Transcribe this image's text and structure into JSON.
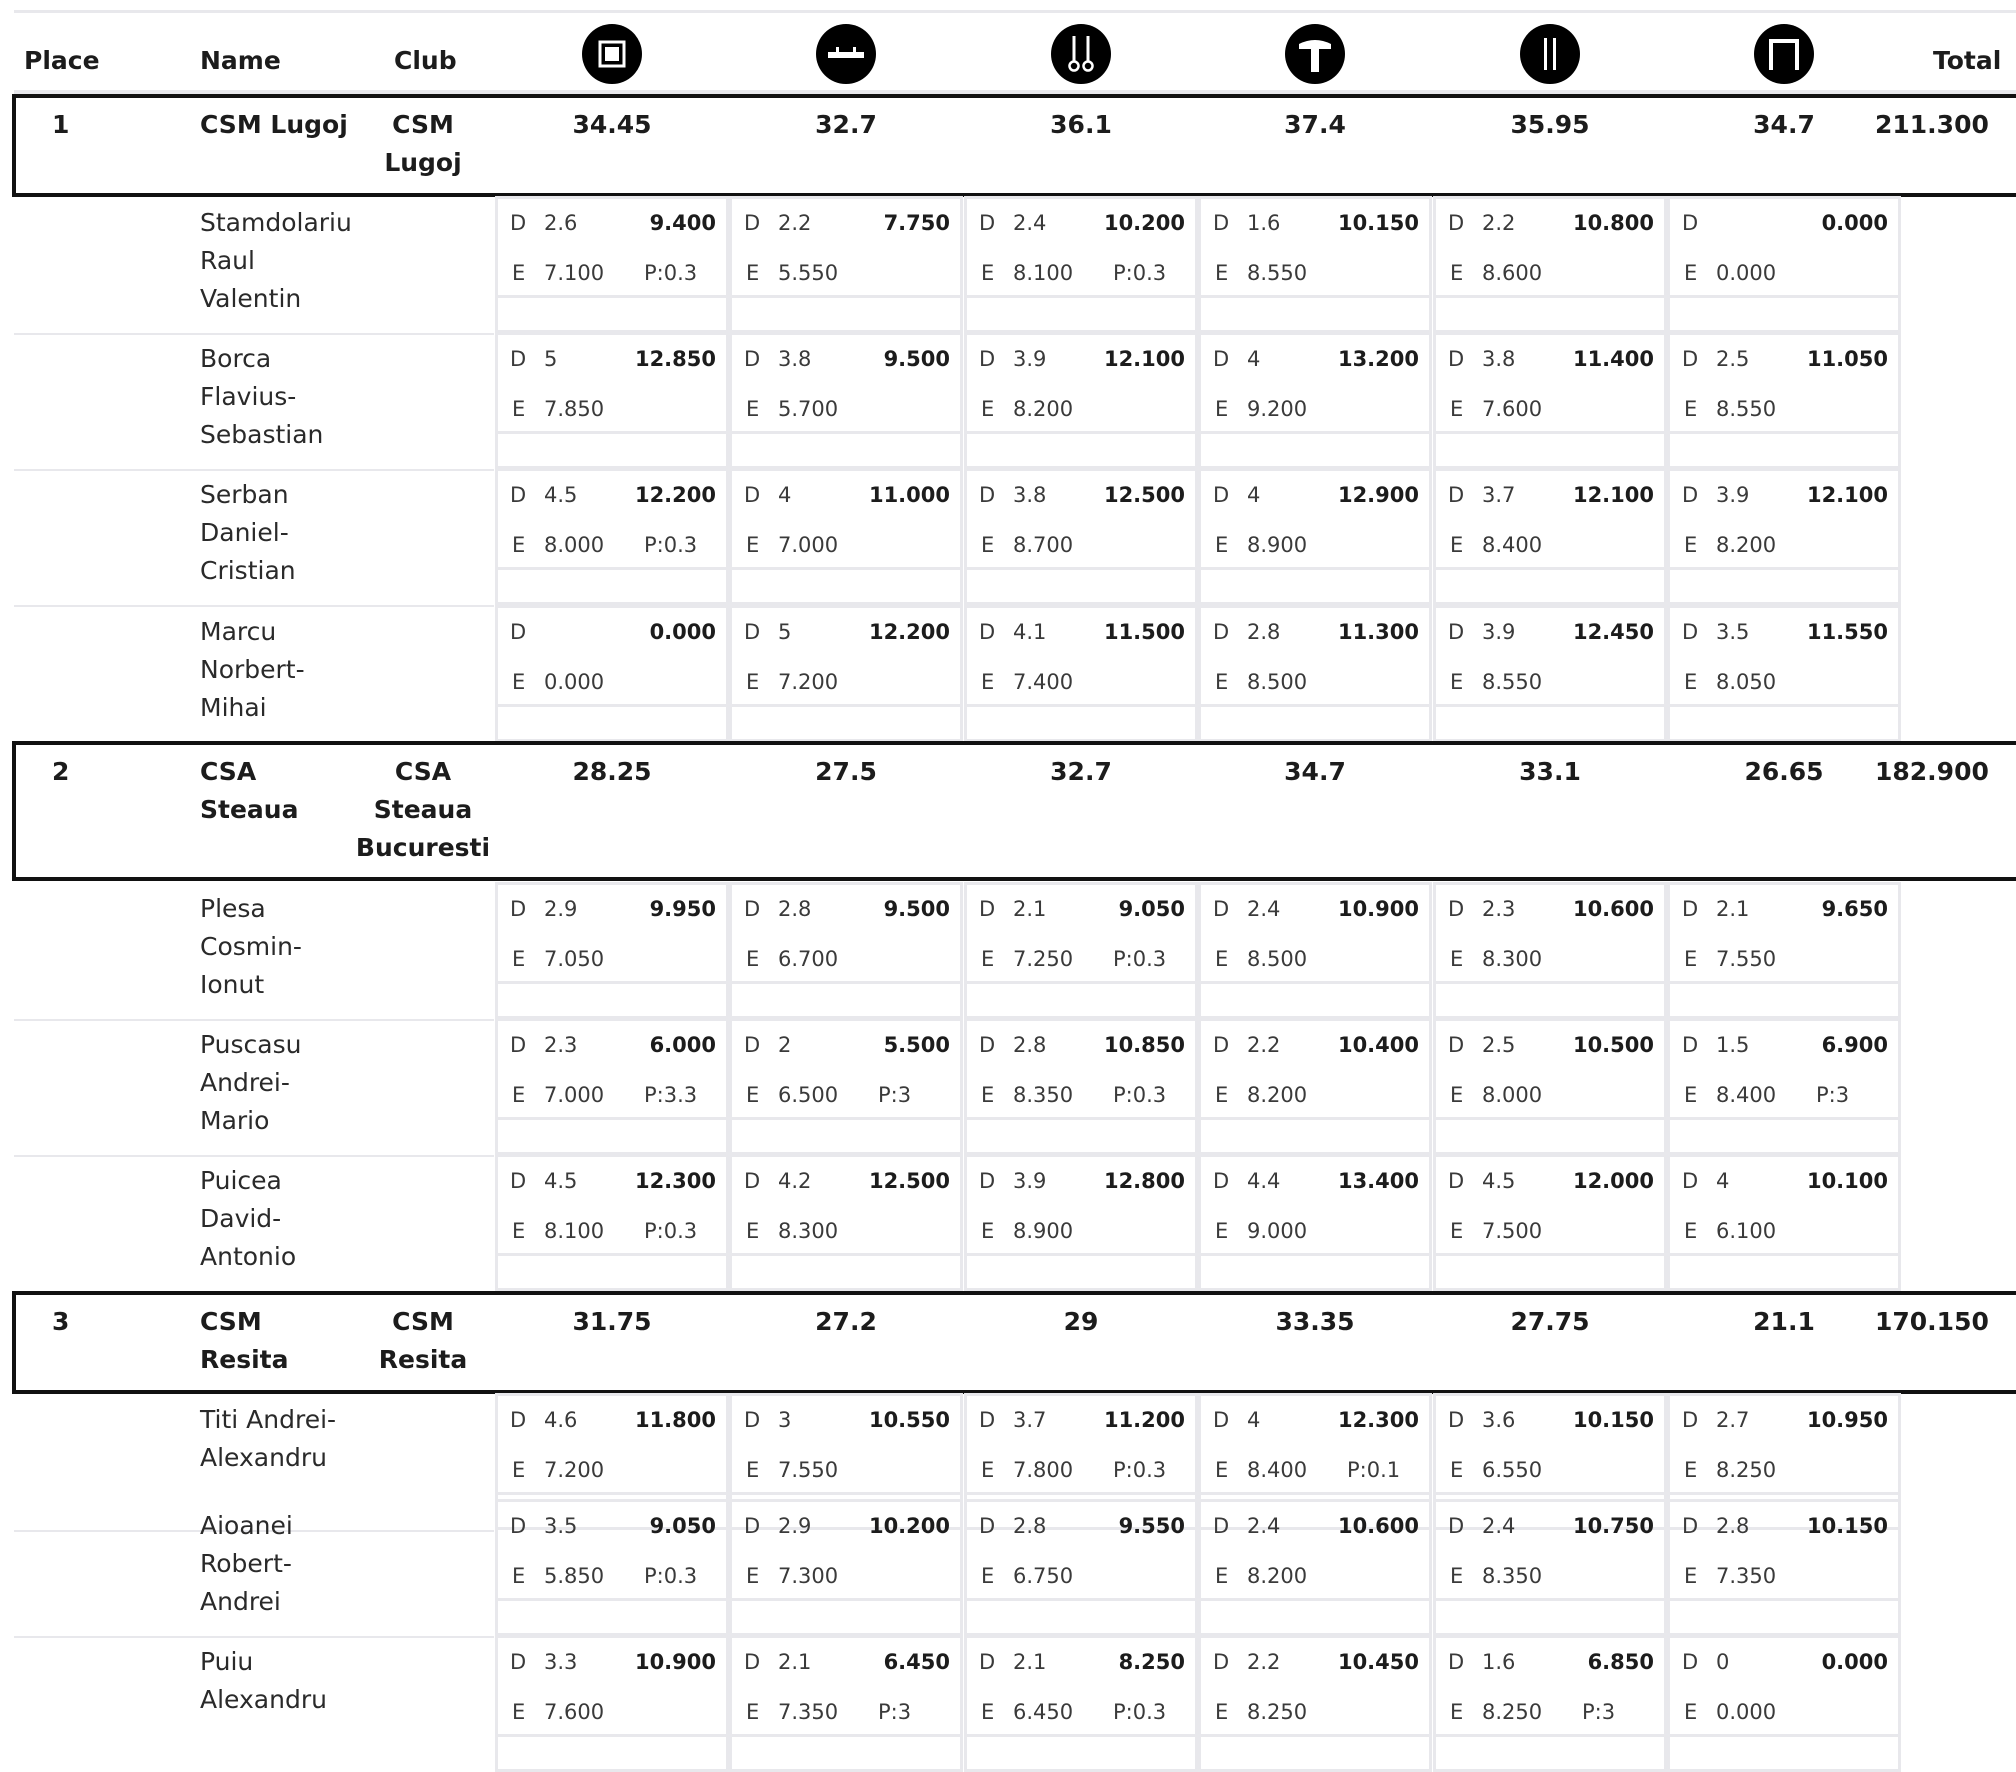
{
  "headers": {
    "place": "Place",
    "name": "Name",
    "club": "Club",
    "total": "Total",
    "apparatus": [
      {
        "icon": "floor-icon"
      },
      {
        "icon": "pommel-horse-icon"
      },
      {
        "icon": "rings-icon"
      },
      {
        "icon": "vault-icon"
      },
      {
        "icon": "parallel-bars-icon"
      },
      {
        "icon": "high-bar-icon"
      }
    ]
  },
  "teams": [
    {
      "place": "1",
      "name_lines": [
        "CSM Lugoj"
      ],
      "club_lines": [
        "CSM",
        "Lugoj"
      ],
      "scores": [
        "34.45",
        "32.7",
        "36.1",
        "37.4",
        "35.95",
        "34.7"
      ],
      "total": "211.300",
      "gymnasts": [
        {
          "name_lines": [
            "Stamdolariu",
            "Raul",
            "Valentin"
          ],
          "cells": [
            {
              "d": "2.6",
              "score": "9.400",
              "e": "7.100",
              "p": "P:0.3"
            },
            {
              "d": "2.2",
              "score": "7.750",
              "e": "5.550",
              "p": ""
            },
            {
              "d": "2.4",
              "score": "10.200",
              "e": "8.100",
              "p": "P:0.3"
            },
            {
              "d": "1.6",
              "score": "10.150",
              "e": "8.550",
              "p": ""
            },
            {
              "d": "2.2",
              "score": "10.800",
              "e": "8.600",
              "p": ""
            },
            {
              "d": "",
              "score": "0.000",
              "e": "0.000",
              "p": ""
            }
          ]
        },
        {
          "name_lines": [
            "Borca",
            "Flavius-",
            "Sebastian"
          ],
          "cells": [
            {
              "d": "5",
              "score": "12.850",
              "e": "7.850",
              "p": ""
            },
            {
              "d": "3.8",
              "score": "9.500",
              "e": "5.700",
              "p": ""
            },
            {
              "d": "3.9",
              "score": "12.100",
              "e": "8.200",
              "p": ""
            },
            {
              "d": "4",
              "score": "13.200",
              "e": "9.200",
              "p": ""
            },
            {
              "d": "3.8",
              "score": "11.400",
              "e": "7.600",
              "p": ""
            },
            {
              "d": "2.5",
              "score": "11.050",
              "e": "8.550",
              "p": ""
            }
          ]
        },
        {
          "name_lines": [
            "Serban",
            "Daniel-",
            "Cristian"
          ],
          "cells": [
            {
              "d": "4.5",
              "score": "12.200",
              "e": "8.000",
              "p": "P:0.3"
            },
            {
              "d": "4",
              "score": "11.000",
              "e": "7.000",
              "p": ""
            },
            {
              "d": "3.8",
              "score": "12.500",
              "e": "8.700",
              "p": ""
            },
            {
              "d": "4",
              "score": "12.900",
              "e": "8.900",
              "p": ""
            },
            {
              "d": "3.7",
              "score": "12.100",
              "e": "8.400",
              "p": ""
            },
            {
              "d": "3.9",
              "score": "12.100",
              "e": "8.200",
              "p": ""
            }
          ]
        },
        {
          "name_lines": [
            "Marcu",
            "Norbert-",
            "Mihai"
          ],
          "cells": [
            {
              "d": "",
              "score": "0.000",
              "e": "0.000",
              "p": ""
            },
            {
              "d": "5",
              "score": "12.200",
              "e": "7.200",
              "p": ""
            },
            {
              "d": "4.1",
              "score": "11.500",
              "e": "7.400",
              "p": ""
            },
            {
              "d": "2.8",
              "score": "11.300",
              "e": "8.500",
              "p": ""
            },
            {
              "d": "3.9",
              "score": "12.450",
              "e": "8.550",
              "p": ""
            },
            {
              "d": "3.5",
              "score": "11.550",
              "e": "8.050",
              "p": ""
            }
          ]
        }
      ]
    },
    {
      "place": "2",
      "name_lines": [
        "CSA",
        "Steaua"
      ],
      "club_lines": [
        "CSA",
        "Steaua",
        "Bucuresti"
      ],
      "scores": [
        "28.25",
        "27.5",
        "32.7",
        "34.7",
        "33.1",
        "26.65"
      ],
      "total": "182.900",
      "gymnasts": [
        {
          "name_lines": [
            "Plesa",
            "Cosmin-",
            "Ionut"
          ],
          "cells": [
            {
              "d": "2.9",
              "score": "9.950",
              "e": "7.050",
              "p": ""
            },
            {
              "d": "2.8",
              "score": "9.500",
              "e": "6.700",
              "p": ""
            },
            {
              "d": "2.1",
              "score": "9.050",
              "e": "7.250",
              "p": "P:0.3"
            },
            {
              "d": "2.4",
              "score": "10.900",
              "e": "8.500",
              "p": ""
            },
            {
              "d": "2.3",
              "score": "10.600",
              "e": "8.300",
              "p": ""
            },
            {
              "d": "2.1",
              "score": "9.650",
              "e": "7.550",
              "p": ""
            }
          ]
        },
        {
          "name_lines": [
            "Puscasu",
            "Andrei-",
            "Mario"
          ],
          "cells": [
            {
              "d": "2.3",
              "score": "6.000",
              "e": "7.000",
              "p": "P:3.3"
            },
            {
              "d": "2",
              "score": "5.500",
              "e": "6.500",
              "p": "P:3"
            },
            {
              "d": "2.8",
              "score": "10.850",
              "e": "8.350",
              "p": "P:0.3"
            },
            {
              "d": "2.2",
              "score": "10.400",
              "e": "8.200",
              "p": ""
            },
            {
              "d": "2.5",
              "score": "10.500",
              "e": "8.000",
              "p": ""
            },
            {
              "d": "1.5",
              "score": "6.900",
              "e": "8.400",
              "p": "P:3"
            }
          ]
        },
        {
          "name_lines": [
            "Puicea",
            "David-",
            "Antonio"
          ],
          "cells": [
            {
              "d": "4.5",
              "score": "12.300",
              "e": "8.100",
              "p": "P:0.3"
            },
            {
              "d": "4.2",
              "score": "12.500",
              "e": "8.300",
              "p": ""
            },
            {
              "d": "3.9",
              "score": "12.800",
              "e": "8.900",
              "p": ""
            },
            {
              "d": "4.4",
              "score": "13.400",
              "e": "9.000",
              "p": ""
            },
            {
              "d": "4.5",
              "score": "12.000",
              "e": "7.500",
              "p": ""
            },
            {
              "d": "4",
              "score": "10.100",
              "e": "6.100",
              "p": ""
            }
          ]
        }
      ]
    },
    {
      "place": "3",
      "name_lines": [
        "CSM",
        "Resita"
      ],
      "club_lines": [
        "CSM",
        "Resita"
      ],
      "scores": [
        "31.75",
        "27.2",
        "29",
        "33.35",
        "27.75",
        "21.1"
      ],
      "total": "170.150",
      "gymnasts": [
        {
          "name_lines": [
            "Titi Andrei-",
            "Alexandru"
          ],
          "cells": [
            {
              "d": "4.6",
              "score": "11.800",
              "e": "7.200",
              "p": ""
            },
            {
              "d": "3",
              "score": "10.550",
              "e": "7.550",
              "p": ""
            },
            {
              "d": "3.7",
              "score": "11.200",
              "e": "7.800",
              "p": "P:0.3"
            },
            {
              "d": "4",
              "score": "12.300",
              "e": "8.400",
              "p": "P:0.1"
            },
            {
              "d": "3.6",
              "score": "10.150",
              "e": "6.550",
              "p": ""
            },
            {
              "d": "2.7",
              "score": "10.950",
              "e": "8.250",
              "p": ""
            }
          ]
        },
        {
          "name_lines": [
            "Aioanei",
            "Robert-",
            "Andrei"
          ],
          "cells": [
            {
              "d": "3.5",
              "score": "9.050",
              "e": "5.850",
              "p": "P:0.3"
            },
            {
              "d": "2.9",
              "score": "10.200",
              "e": "7.300",
              "p": ""
            },
            {
              "d": "2.8",
              "score": "9.550",
              "e": "6.750",
              "p": ""
            },
            {
              "d": "2.4",
              "score": "10.600",
              "e": "8.200",
              "p": ""
            },
            {
              "d": "2.4",
              "score": "10.750",
              "e": "8.350",
              "p": ""
            },
            {
              "d": "2.8",
              "score": "10.150",
              "e": "7.350",
              "p": ""
            }
          ]
        },
        {
          "name_lines": [
            "Puiu",
            "Alexandru"
          ],
          "cells": [
            {
              "d": "3.3",
              "score": "10.900",
              "e": "7.600",
              "p": ""
            },
            {
              "d": "2.1",
              "score": "6.450",
              "e": "7.350",
              "p": "P:3"
            },
            {
              "d": "2.1",
              "score": "8.250",
              "e": "6.450",
              "p": "P:0.3"
            },
            {
              "d": "2.2",
              "score": "10.450",
              "e": "8.250",
              "p": ""
            },
            {
              "d": "1.6",
              "score": "6.850",
              "e": "8.250",
              "p": "P:3"
            },
            {
              "d": "0",
              "score": "0.000",
              "e": "0.000",
              "p": ""
            }
          ]
        }
      ]
    }
  ]
}
